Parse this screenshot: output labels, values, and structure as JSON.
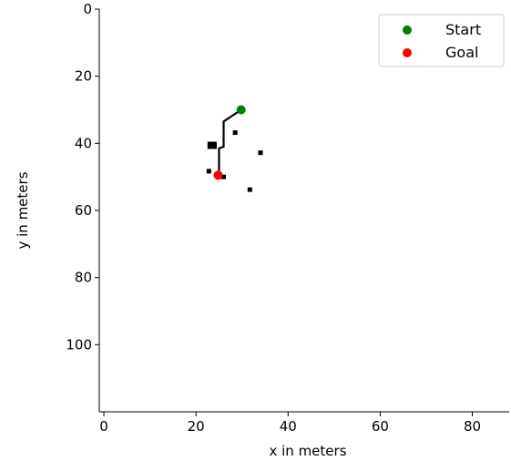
{
  "chart_data": {
    "type": "scatter",
    "title": "",
    "xlabel": "x in meters",
    "ylabel": "y in meters",
    "xlim": [
      -1,
      88
    ],
    "ylim": [
      120,
      0
    ],
    "y_inverted": true,
    "xticks": [
      0,
      20,
      40,
      60,
      80
    ],
    "yticks": [
      0,
      20,
      40,
      60,
      80,
      100
    ],
    "grid": false,
    "legend_position": "top-right",
    "series": [
      {
        "name": "Start",
        "type": "scatter",
        "color": "#008000",
        "points": [
          [
            29.8,
            30.0
          ]
        ]
      },
      {
        "name": "Goal",
        "type": "scatter",
        "color": "#ff0000",
        "points": [
          [
            24.8,
            49.5
          ]
        ]
      }
    ],
    "path": {
      "color": "#000000",
      "points": [
        [
          29.8,
          30.0
        ],
        [
          26.0,
          33.5
        ],
        [
          26.0,
          41.0
        ],
        [
          25.0,
          41.5
        ],
        [
          25.0,
          49.5
        ]
      ]
    },
    "obstacles": {
      "color": "#000000",
      "points": [
        [
          23.5,
          40.2
        ],
        [
          23.0,
          40.2
        ],
        [
          24.0,
          40.2
        ],
        [
          23.0,
          41.0
        ],
        [
          24.0,
          41.0
        ],
        [
          28.5,
          36.8
        ],
        [
          34.0,
          42.8
        ],
        [
          22.8,
          48.3
        ],
        [
          26.0,
          50.0
        ],
        [
          31.7,
          53.8
        ]
      ]
    }
  }
}
